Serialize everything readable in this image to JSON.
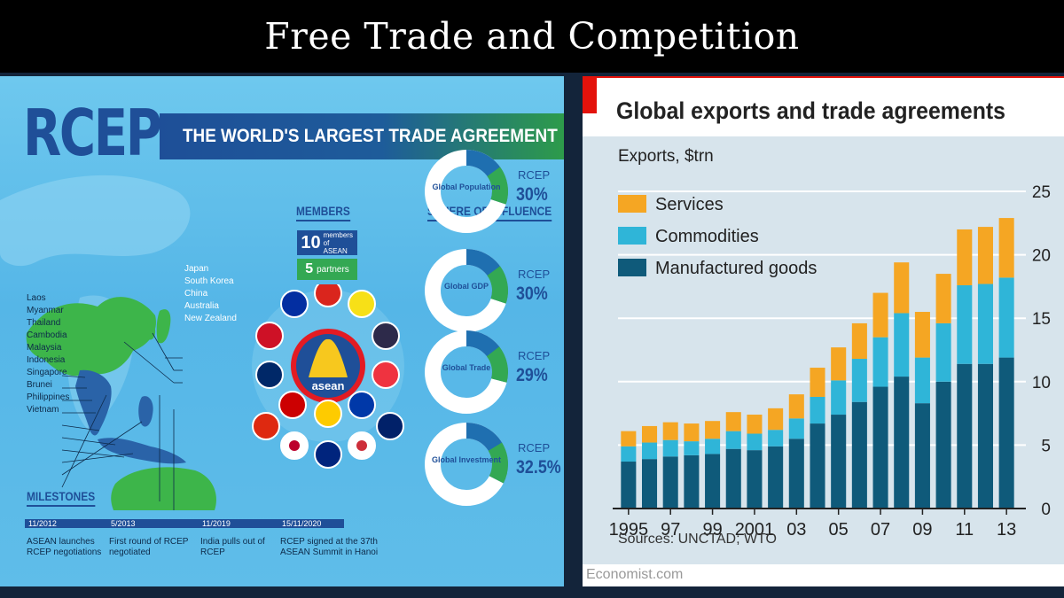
{
  "slide": {
    "title": "Free Trade and Competition"
  },
  "rcep": {
    "title": "RCEP",
    "subtitle": "THE WORLD'S LARGEST TRADE AGREEMENT",
    "members_heading": "MEMBERS",
    "asean_count": "10",
    "asean_label": "members of ASEAN",
    "partners_count": "5",
    "partners_label": "partners",
    "asean_logo_text": "asean",
    "partners": [
      "Japan",
      "South Korea",
      "China",
      "Australia",
      "New Zealand"
    ],
    "asean_members": [
      "Laos",
      "Myanmar",
      "Thailand",
      "Cambodia",
      "Malaysia",
      "Indonesia",
      "Singapore",
      "Brunei",
      "Philippines",
      "Vietnam"
    ],
    "sphere_heading": "SPHERE OF INFLUENCE",
    "sphere": [
      {
        "label": "Global Population",
        "name": "RCEP",
        "value": "30",
        "unit": "%",
        "share": 0.3
      },
      {
        "label": "Global GDP",
        "name": "RCEP",
        "value": "30",
        "unit": "%",
        "share": 0.3
      },
      {
        "label": "Global Trade",
        "name": "RCEP",
        "value": "29",
        "unit": "%",
        "share": 0.29
      },
      {
        "label": "Global Investment",
        "name": "RCEP",
        "value": "32.5",
        "unit": "%",
        "share": 0.325
      }
    ],
    "milestones_heading": "MILESTONES",
    "milestones": [
      {
        "date": "11/2012",
        "text": "ASEAN launches RCEP negotiations"
      },
      {
        "date": "5/2013",
        "text": "First round of RCEP negotiated"
      },
      {
        "date": "11/2019",
        "text": "India pulls out of RCEP"
      },
      {
        "date": "15/11/2020",
        "text": "RCEP signed at the 37th ASEAN Summit in Hanoi"
      }
    ],
    "colors": {
      "blue": "#1f4f98",
      "green": "#33a853",
      "land": "#3db54a",
      "asean_land": "#2a63a8"
    }
  },
  "economist": {
    "source": "Sources: UNCTAD; WTO",
    "url": "Economist.com",
    "brand_color": "#e3120b"
  },
  "chart_data": {
    "type": "bar",
    "stacked": true,
    "title": "Global exports and trade agreements",
    "ylabel": "Exports, $trn",
    "ylim": [
      0,
      25
    ],
    "yticks": [
      0,
      5,
      10,
      15,
      20,
      25
    ],
    "grid": true,
    "legend": "top-left",
    "years": [
      1995,
      1996,
      1997,
      1998,
      1999,
      2000,
      2001,
      2002,
      2003,
      2004,
      2005,
      2006,
      2007,
      2008,
      2009,
      2010,
      2011,
      2012,
      2013
    ],
    "xtick_labels": [
      {
        "year": 1995,
        "label": "1995"
      },
      {
        "year": 1997,
        "label": "97"
      },
      {
        "year": 1999,
        "label": "99"
      },
      {
        "year": 2001,
        "label": "2001"
      },
      {
        "year": 2003,
        "label": "03"
      },
      {
        "year": 2005,
        "label": "05"
      },
      {
        "year": 2007,
        "label": "07"
      },
      {
        "year": 2009,
        "label": "09"
      },
      {
        "year": 2011,
        "label": "11"
      },
      {
        "year": 2013,
        "label": "13"
      }
    ],
    "series": [
      {
        "name": "Manufactured goods",
        "color": "#0f5a7a",
        "values": [
          3.7,
          3.9,
          4.1,
          4.2,
          4.3,
          4.7,
          4.6,
          4.9,
          5.5,
          6.7,
          7.4,
          8.4,
          9.6,
          10.4,
          8.3,
          10.0,
          11.4,
          11.4,
          11.9
        ]
      },
      {
        "name": "Commodities",
        "color": "#2fb5d8",
        "values": [
          1.2,
          1.3,
          1.3,
          1.1,
          1.2,
          1.4,
          1.3,
          1.3,
          1.6,
          2.1,
          2.7,
          3.4,
          3.9,
          5.0,
          3.6,
          4.6,
          6.2,
          6.3,
          6.3
        ]
      },
      {
        "name": "Services",
        "color": "#f5a623",
        "values": [
          1.2,
          1.3,
          1.4,
          1.4,
          1.4,
          1.5,
          1.5,
          1.7,
          1.9,
          2.3,
          2.6,
          2.8,
          3.5,
          4.0,
          3.6,
          3.9,
          4.4,
          4.5,
          4.7
        ]
      }
    ],
    "legend_order": [
      "Services",
      "Commodities",
      "Manufactured goods"
    ]
  }
}
